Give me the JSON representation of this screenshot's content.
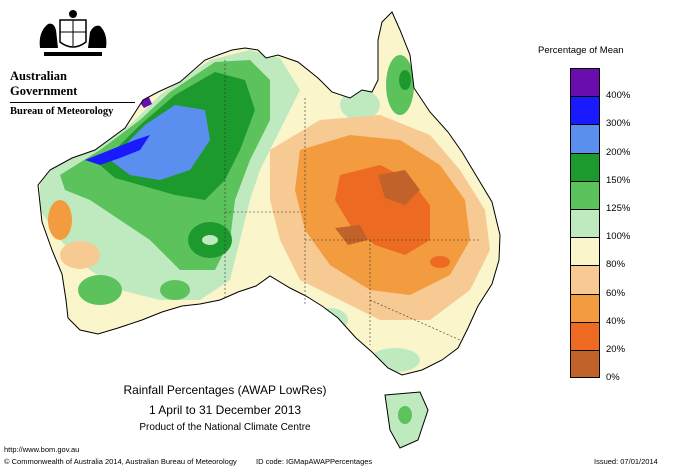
{
  "header": {
    "government": "Australian Government",
    "bureau": "Bureau of Meteorology"
  },
  "legend": {
    "title": "Percentage of Mean",
    "items": [
      {
        "label": "400%",
        "color": "#6a0dad"
      },
      {
        "label": "300%",
        "color": "#1a1aff"
      },
      {
        "label": "200%",
        "color": "#5a8ff0"
      },
      {
        "label": "150%",
        "color": "#1c9a2e"
      },
      {
        "label": "125%",
        "color": "#5cc25c"
      },
      {
        "label": "100%",
        "color": "#bfe9bf"
      },
      {
        "label": "80%",
        "color": "#fbf5cc"
      },
      {
        "label": "60%",
        "color": "#f7c993"
      },
      {
        "label": "40%",
        "color": "#f39c3f"
      },
      {
        "label": "20%",
        "color": "#ec6a22"
      },
      {
        "label": "0%",
        "color": "#c1622a"
      }
    ]
  },
  "map_title": {
    "line1": "Rainfall Percentages (AWAP LowRes)",
    "line2": "1 April to 31 December 2013",
    "line3": "Product of the National Climate Centre"
  },
  "footer": {
    "url": "http://www.bom.gov.au",
    "copyright": "© Commonwealth of Australia 2014, Australian Bureau of Meteorology",
    "id_code": "ID code: IGMapAWAPPercentages",
    "issued": "Issued: 07/01/2014"
  }
}
